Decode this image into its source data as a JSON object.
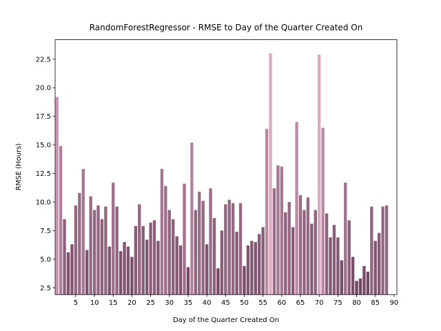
{
  "chart_data": {
    "type": "bar",
    "title": "RandomForestRegressor - RMSE to Day of the Quarter Created On",
    "x_label": "Day of the Quarter Created On",
    "y_label": "RMSE (Hours)",
    "x": [
      0,
      1,
      2,
      3,
      4,
      5,
      6,
      7,
      8,
      9,
      10,
      11,
      12,
      13,
      14,
      15,
      16,
      17,
      18,
      19,
      20,
      21,
      22,
      23,
      24,
      25,
      26,
      27,
      28,
      29,
      30,
      31,
      32,
      33,
      34,
      35,
      36,
      37,
      38,
      39,
      40,
      41,
      42,
      43,
      44,
      45,
      46,
      47,
      48,
      49,
      50,
      51,
      52,
      53,
      54,
      55,
      56,
      57,
      58,
      59,
      60,
      61,
      62,
      63,
      64,
      65,
      66,
      67,
      68,
      69,
      70,
      71,
      72,
      73,
      74,
      75,
      76,
      77,
      78,
      79,
      80,
      81,
      82,
      83,
      84,
      85,
      86,
      87,
      88
    ],
    "values": [
      19.2,
      14.9,
      8.5,
      5.6,
      6.3,
      9.7,
      10.8,
      12.9,
      5.8,
      10.5,
      9.3,
      9.7,
      8.5,
      9.6,
      6.1,
      11.7,
      9.6,
      5.7,
      6.5,
      6.1,
      5.2,
      7.9,
      9.8,
      7.9,
      6.7,
      8.2,
      8.4,
      6.6,
      12.9,
      11.4,
      9.3,
      8.5,
      7.0,
      6.2,
      11.6,
      4.3,
      15.2,
      9.3,
      10.9,
      10.1,
      6.3,
      11.2,
      8.6,
      4.2,
      7.5,
      9.8,
      10.2,
      9.9,
      7.4,
      9.9,
      4.4,
      6.2,
      6.6,
      6.5,
      7.2,
      7.8,
      16.4,
      23.0,
      11.2,
      13.2,
      13.1,
      9.1,
      10.0,
      7.8,
      17.0,
      10.6,
      9.3,
      10.4,
      8.1,
      9.3,
      22.9,
      16.5,
      9.0,
      6.9,
      8.0,
      6.9,
      4.9,
      11.7,
      8.4,
      5.2,
      3.1,
      3.3,
      4.4,
      3.9,
      9.6,
      6.6,
      7.3,
      9.6,
      9.7
    ],
    "palette": [
      "#6f4560",
      "#dcaac2"
    ],
    "xlim": [
      -0.5,
      90.75
    ],
    "xticks": [
      5,
      10,
      15,
      20,
      25,
      30,
      35,
      40,
      45,
      50,
      55,
      60,
      65,
      70,
      75,
      80,
      85,
      90
    ],
    "ylim": [
      1.9,
      24.2
    ],
    "yticks": [
      2.5,
      {
        "value": 5,
        "label": "5.0"
      },
      7.5,
      {
        "value": 10,
        "label": "10.0"
      },
      12.5,
      {
        "value": 15,
        "label": "15.0"
      },
      17.5,
      {
        "value": 20,
        "label": "20.0"
      },
      22.5
    ]
  }
}
